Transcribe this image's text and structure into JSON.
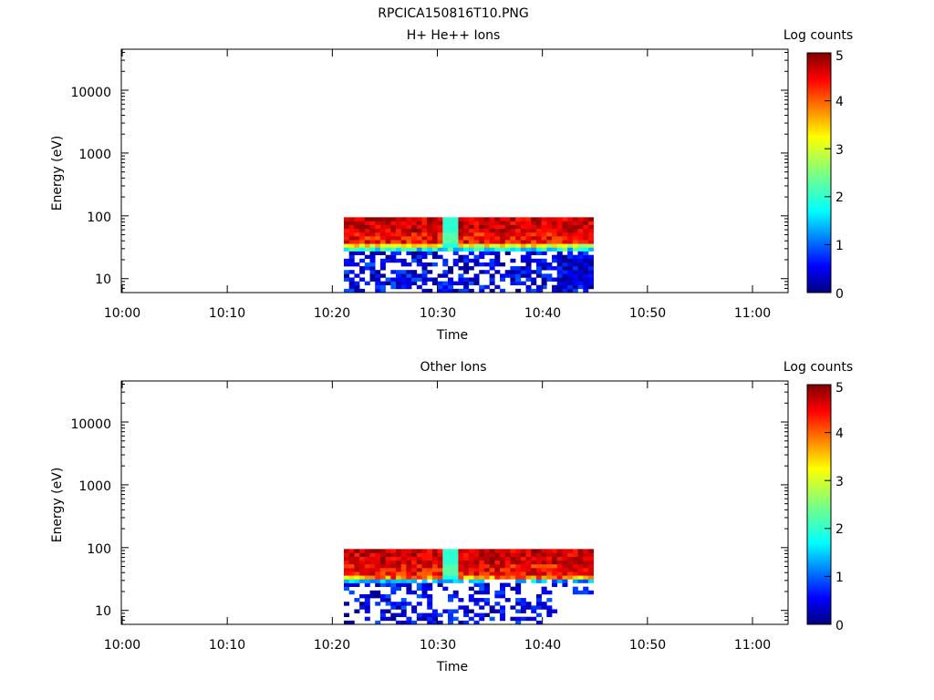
{
  "figure_title": "RPCICA150816T10.PNG",
  "chart_data": [
    {
      "type": "heatmap",
      "title": "H+ He++ Ions",
      "xlabel": "Time",
      "ylabel": "Energy (eV)",
      "y_scale": "log",
      "ylim": [
        6,
        45000
      ],
      "x_ticks": [
        "10:00",
        "10:10",
        "10:20",
        "10:30",
        "10:40",
        "10:50",
        "11:00"
      ],
      "x_range": [
        "10:00",
        "11:03"
      ],
      "y_ticks": [
        "10",
        "100",
        "1000",
        "10000"
      ],
      "colorbar": {
        "label": "Log counts",
        "ticks": [
          "0",
          "1",
          "2",
          "3",
          "4",
          "5"
        ],
        "range": [
          0,
          5
        ]
      },
      "data_extent": {
        "time_start": "10:21",
        "time_end": "10:45",
        "energy_min_eV": 6,
        "energy_max_eV": 95
      },
      "summary": "Intense signal (log counts 4-5) at about 35-95 eV between 10:21 and 10:45, weaker green/cyan level near 30 eV, sparse low counts (0-1) below 30 eV; a short dip near 10:30 with values around 2.",
      "seed": 7
    },
    {
      "type": "heatmap",
      "title": "Other Ions",
      "xlabel": "Time",
      "ylabel": "Energy (eV)",
      "y_scale": "log",
      "ylim": [
        6,
        45000
      ],
      "x_ticks": [
        "10:00",
        "10:10",
        "10:20",
        "10:30",
        "10:40",
        "10:50",
        "11:00"
      ],
      "x_range": [
        "10:00",
        "11:03"
      ],
      "y_ticks": [
        "10",
        "100",
        "1000",
        "10000"
      ],
      "colorbar": {
        "label": "Log counts",
        "ticks": [
          "0",
          "1",
          "2",
          "3",
          "4",
          "5"
        ],
        "range": [
          0,
          5
        ]
      },
      "data_extent": {
        "time_start": "10:21",
        "time_end": "10:45",
        "energy_min_eV": 6,
        "energy_max_eV": 95
      },
      "summary": "Intense signal (log counts 4-5) at about 35-95 eV between 10:21 and 10:45, sparse low counts (0-1) below 30 eV; a short dip near 10:30 with values around 2.",
      "seed": 19
    }
  ]
}
